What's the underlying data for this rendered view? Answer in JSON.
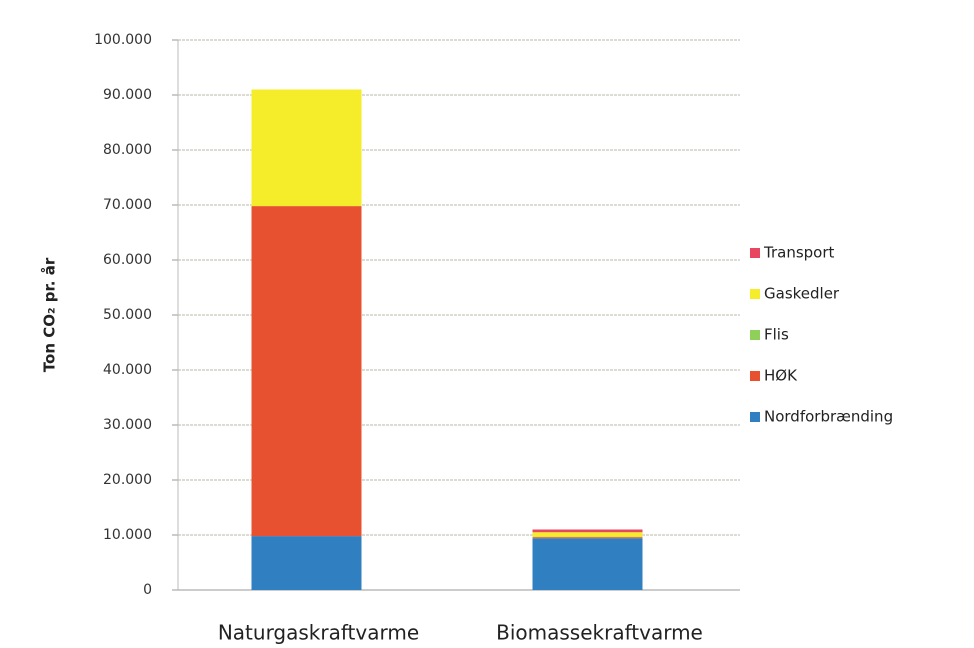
{
  "chart_data": {
    "type": "stacked_bar",
    "y_label": "Ton CO₂ pr. år",
    "categories": [
      "Naturgaskraftvarme",
      "Biomassekraftvarme"
    ],
    "series": [
      {
        "name": "Nordforbrænding",
        "color": "#2f7fc1",
        "values": [
          9800,
          9400
        ]
      },
      {
        "name": "HØK",
        "color": "#e8512f",
        "values": [
          60000,
          200
        ]
      },
      {
        "name": "Flis",
        "color": "#8fd05a",
        "values": [
          0,
          100
        ]
      },
      {
        "name": "Gaskedler",
        "color": "#f5ec2a",
        "values": [
          21200,
          800
        ]
      },
      {
        "name": "Transport",
        "color": "#e8485f",
        "values": [
          0,
          500
        ]
      }
    ],
    "ylim": [
      0,
      100000
    ],
    "yticks": [
      0,
      {
        "value": 10000,
        "label": "10.000"
      },
      {
        "value": 20000,
        "label": "20.000"
      },
      {
        "value": 30000,
        "label": "30.000"
      },
      {
        "value": 40000,
        "label": "40.000"
      },
      {
        "value": 50000,
        "label": "50.000"
      },
      {
        "value": 60000,
        "label": "60.000"
      },
      {
        "value": 70000,
        "label": "70.000"
      },
      {
        "value": 80000,
        "label": "80.000"
      },
      {
        "value": 90000,
        "label": "90.000"
      },
      {
        "value": 100000,
        "label": "100.000"
      }
    ],
    "grid": true,
    "legend": "right"
  }
}
